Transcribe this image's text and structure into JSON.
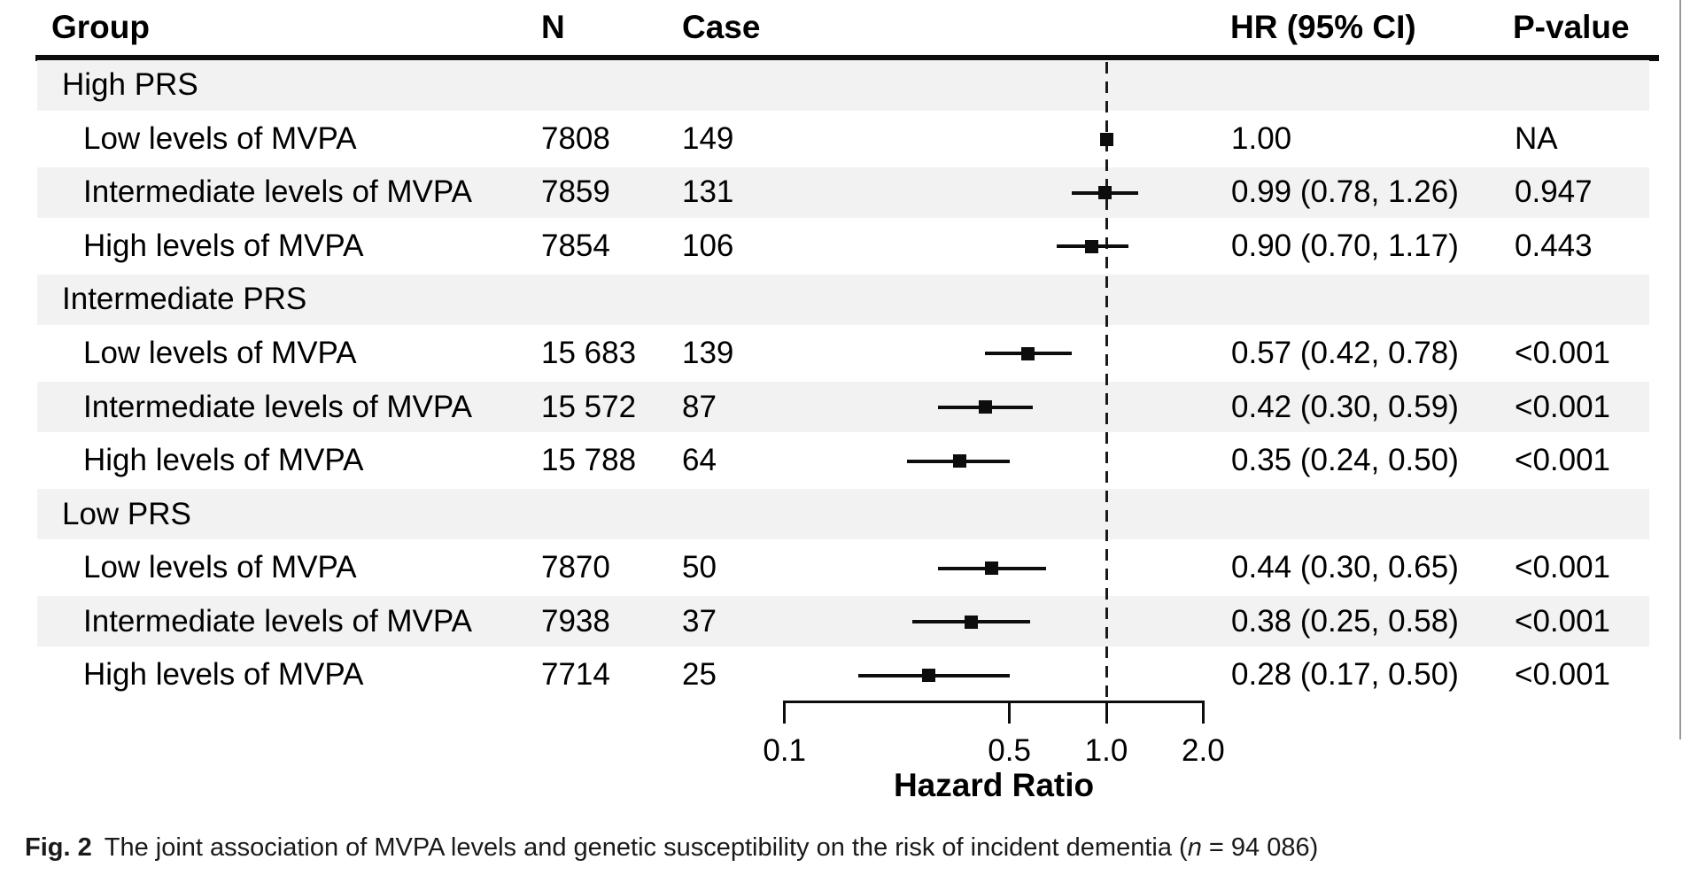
{
  "table": {
    "columns": [
      "Group",
      "N",
      "Case",
      "HR (95% CI)",
      "P-value"
    ]
  },
  "chart_data": {
    "type": "forest",
    "xscale": "log",
    "xlabel": "Hazard Ratio",
    "xticks": [
      0.1,
      0.5,
      1.0,
      2.0
    ],
    "xtick_labels": [
      "0.1",
      "0.5",
      "1.0",
      "2.0"
    ],
    "reference_line": 1.0,
    "marker": "square",
    "rows": [
      {
        "group": "High PRS",
        "header": true
      },
      {
        "group": "Low levels of MVPA",
        "n": "7808",
        "cases": "149",
        "hr": 1.0,
        "ci_low": null,
        "ci_high": null,
        "hr_text": "1.00",
        "p": "NA"
      },
      {
        "group": "Intermediate levels of MVPA",
        "n": "7859",
        "cases": "131",
        "hr": 0.99,
        "ci_low": 0.78,
        "ci_high": 1.26,
        "hr_text": "0.99 (0.78, 1.26)",
        "p": "0.947"
      },
      {
        "group": "High levels of MVPA",
        "n": "7854",
        "cases": "106",
        "hr": 0.9,
        "ci_low": 0.7,
        "ci_high": 1.17,
        "hr_text": "0.90 (0.70, 1.17)",
        "p": "0.443"
      },
      {
        "group": "Intermediate PRS",
        "header": true
      },
      {
        "group": "Low levels of MVPA",
        "n": "15 683",
        "cases": "139",
        "hr": 0.57,
        "ci_low": 0.42,
        "ci_high": 0.78,
        "hr_text": "0.57 (0.42, 0.78)",
        "p": "<0.001"
      },
      {
        "group": "Intermediate levels of MVPA",
        "n": "15 572",
        "cases": "87",
        "hr": 0.42,
        "ci_low": 0.3,
        "ci_high": 0.59,
        "hr_text": "0.42 (0.30, 0.59)",
        "p": "<0.001"
      },
      {
        "group": "High levels of MVPA",
        "n": "15 788",
        "cases": "64",
        "hr": 0.35,
        "ci_low": 0.24,
        "ci_high": 0.5,
        "hr_text": "0.35 (0.24, 0.50)",
        "p": "<0.001"
      },
      {
        "group": "Low PRS",
        "header": true
      },
      {
        "group": "Low levels of MVPA",
        "n": "7870",
        "cases": "50",
        "hr": 0.44,
        "ci_low": 0.3,
        "ci_high": 0.65,
        "hr_text": "0.44 (0.30, 0.65)",
        "p": "<0.001"
      },
      {
        "group": "Intermediate levels of MVPA",
        "n": "7938",
        "cases": "37",
        "hr": 0.38,
        "ci_low": 0.25,
        "ci_high": 0.58,
        "hr_text": "0.38 (0.25, 0.58)",
        "p": "<0.001"
      },
      {
        "group": "High levels of MVPA",
        "n": "7714",
        "cases": "25",
        "hr": 0.28,
        "ci_low": 0.17,
        "ci_high": 0.5,
        "hr_text": "0.28 (0.17, 0.50)",
        "p": "<0.001"
      }
    ]
  },
  "caption": {
    "fig_label": "Fig. 2",
    "text": "The joint association of MVPA levels and genetic susceptibility on the risk of incident dementia (",
    "n_var": "n",
    "n_rest": " = 94 086)"
  },
  "colors": {
    "band": "#f2f2f2",
    "ink": "#0d0d0d",
    "edge": "#999999"
  }
}
